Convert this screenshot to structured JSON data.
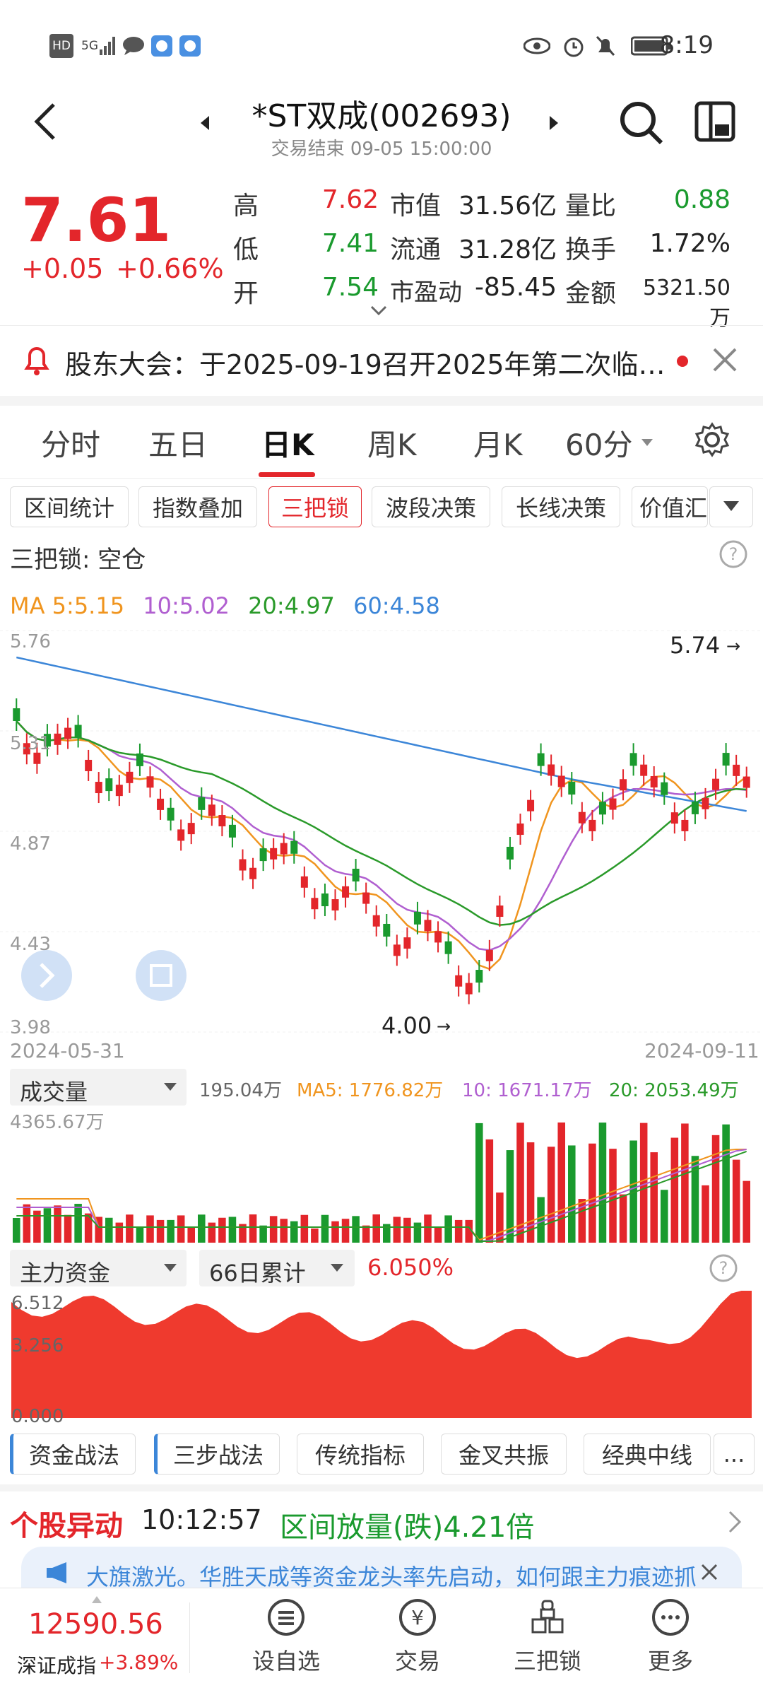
{
  "status_bar": {
    "left": [
      "HD",
      "5G",
      "signal-icon",
      "chat-icon",
      "app-icon",
      "app-icon"
    ],
    "time": "8:19"
  },
  "header": {
    "title": "*ST双成(002693)",
    "subtitle": "交易结束 09-05 15:00:00"
  },
  "quote": {
    "price": "7.61",
    "change": "+0.05",
    "change_pct": "+0.66%",
    "rows": [
      {
        "l1": "高",
        "v1": "7.62",
        "c1": "red",
        "l2": "市值",
        "v2": "31.56亿",
        "l3": "量比",
        "v3": "0.88",
        "c3": "green"
      },
      {
        "l1": "低",
        "v1": "7.41",
        "c1": "green",
        "l2": "流通",
        "v2": "31.28亿",
        "l3": "换手",
        "v3": "1.72%",
        "c3": "dark"
      },
      {
        "l1": "开",
        "v1": "7.54",
        "c1": "green",
        "l2": "市盈动",
        "v2": "-85.45",
        "l3": "金额",
        "v3": "5321.50万",
        "c3": "dark"
      }
    ]
  },
  "notice": {
    "text": "股东大会：于2025-09-19召开2025年第二次临…"
  },
  "period_tabs": [
    "分时",
    "五日",
    "日K",
    "周K",
    "月K",
    "60分"
  ],
  "indicator_chips": [
    "区间统计",
    "指数叠加",
    "三把锁",
    "波段决策",
    "长线决策",
    "价值汇"
  ],
  "lock_status": "三把锁: 空仓",
  "ma_legend": {
    "ma5": "MA 5:5.15",
    "ma10": "10:5.02",
    "ma20": "20:4.97",
    "ma60": "60:4.58"
  },
  "price_chart": {
    "yticks": [
      "5.76",
      "5.31",
      "4.87",
      "4.43",
      "3.98"
    ],
    "max_label": "5.74",
    "min_label": "4.00",
    "date_start": "2024-05-31",
    "date_end": "2024-09-11"
  },
  "volume_bar": {
    "selector": "成交量",
    "value": "195.04万",
    "ma5": "MA5: 1776.82万",
    "ma10": "10: 1671.17万",
    "ma20": "20: 2053.49万",
    "ymax": "4365.67万"
  },
  "capital_bar": {
    "selector": "主力资金",
    "period": "66日累计",
    "value": "6.050%",
    "yticks": [
      "6.512",
      "3.256",
      "0.000"
    ]
  },
  "strategy_tabs": [
    "资金战法",
    "三步战法",
    "传统指标",
    "金叉共振",
    "经典中线",
    "..."
  ],
  "alert": {
    "title": "个股异动",
    "time": "10:12:57",
    "text": "区间放量(跌)4.21倍"
  },
  "banner": {
    "text": "大旗激光。华胜天成等资金龙头率先启动，如何跟主力痕迹抓"
  },
  "bottom_nav": {
    "index_value": "12590.56",
    "index_name": "深证成指",
    "index_change": "+3.89%",
    "items": [
      "设自选",
      "交易",
      "三把锁",
      "更多"
    ]
  },
  "colors": {
    "up": "#e3262b",
    "down": "#1a9a2e",
    "ma5": "#f0951f",
    "ma10": "#b05fd0",
    "ma20": "#2a9a2a",
    "ma60": "#3c86d8"
  }
}
